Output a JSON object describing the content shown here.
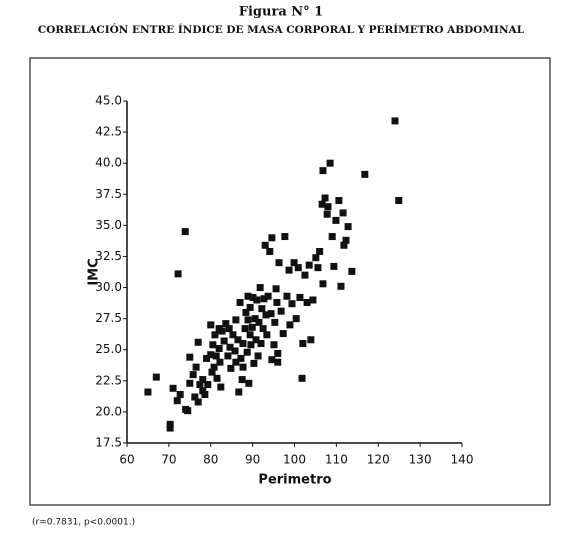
{
  "chart_data": {
    "type": "scatter",
    "title": "Figura N° 1",
    "subtitle": "CORRELACIÓN ENTRE ÍNDICE DE MASA CORPORAL Y PERÍMETRO ABDOMINAL",
    "x_label": "Perimetro",
    "y_label": "IMC",
    "note": "(r=0.7831, p<0.0001.)",
    "color": "#111111",
    "xlim": [
      60,
      140
    ],
    "xticks": [
      60,
      70,
      80,
      90,
      100,
      110,
      120,
      130,
      140
    ],
    "ylim": [
      17.5,
      45
    ],
    "yticks": [
      17.5,
      {
        "value": 20,
        "label": "20.0"
      },
      22.5,
      {
        "value": 25,
        "label": "25.0"
      },
      27.5,
      {
        "value": 30,
        "label": "30.0"
      },
      32.5,
      {
        "value": 35,
        "label": "35.0"
      },
      37.5,
      {
        "value": 40,
        "label": "40.0"
      },
      42.5,
      {
        "value": 45,
        "label": "45.0"
      }
    ],
    "x": [
      65,
      67,
      70.3,
      70.3,
      71,
      72,
      72.2,
      73.9,
      72.7,
      74,
      74.5,
      75,
      75,
      75.8,
      76.2,
      76.5,
      77,
      77,
      77.4,
      78.1,
      78.1,
      78.6,
      79,
      79.3,
      80,
      80,
      80.3,
      80.5,
      80.8,
      81,
      81.3,
      81.5,
      82,
      82,
      82.2,
      82.4,
      82.7,
      83.2,
      83.6,
      84.1,
      84.4,
      84.6,
      84.8,
      85.3,
      85.8,
      86,
      86,
      86.5,
      86.7,
      87,
      87.2,
      87.5,
      87.7,
      87.7,
      88.2,
      88.4,
      88.7,
      88.9,
      88.9,
      89.1,
      89.4,
      89.4,
      89.6,
      89.9,
      90.1,
      90.3,
      90.6,
      90.8,
      91,
      91.3,
      91.5,
      91.8,
      92,
      92.2,
      92.5,
      92.7,
      93,
      93.2,
      93.4,
      93.7,
      94.1,
      94.4,
      94.6,
      94.6,
      95.1,
      95.3,
      95.6,
      95.8,
      96.3,
      96.8,
      97.3,
      97.7,
      98.2,
      98.7,
      98.9,
      99.4,
      99.9,
      100.4,
      100.9,
      101.3,
      101.8,
      102,
      102.5,
      103,
      103.5,
      103.9,
      104.4,
      105.1,
      105.6,
      106,
      106.6,
      106.8,
      106.8,
      107.3,
      107.8,
      108,
      108.5,
      109,
      109.4,
      109.9,
      110.6,
      111.1,
      111.6,
      111.8,
      112.3,
      112.8,
      113.7,
      116.8,
      124,
      124.9,
      96,
      96
    ],
    "y": [
      21.6,
      22.8,
      19,
      18.7,
      21.9,
      20.9,
      31.1,
      34.5,
      21.4,
      20.2,
      20.1,
      22.3,
      24.4,
      23,
      21.2,
      23.6,
      25.6,
      20.8,
      22.2,
      21.7,
      22.6,
      21.4,
      24.3,
      22.2,
      27,
      24.6,
      23.2,
      25.4,
      23.6,
      26.2,
      24.5,
      22.7,
      26.7,
      25.1,
      24,
      22,
      26.5,
      25.7,
      27.1,
      24.5,
      26.7,
      25.2,
      23.5,
      26.2,
      24.9,
      27.4,
      24,
      25.8,
      21.6,
      28.8,
      24.3,
      22.6,
      23.6,
      25.5,
      26.7,
      28,
      24.8,
      27.4,
      29.3,
      22.3,
      26.2,
      28.4,
      25.4,
      26.8,
      29.2,
      23.9,
      27.5,
      25.8,
      29,
      24.5,
      27.2,
      30,
      25.5,
      28.3,
      26.7,
      29.1,
      33.4,
      27.8,
      26.2,
      29.3,
      32.9,
      27.9,
      34,
      24.2,
      25.4,
      27.2,
      29.9,
      28.8,
      32,
      28.1,
      26.3,
      34.1,
      29.3,
      31.4,
      27,
      28.7,
      32,
      27.5,
      31.6,
      29.2,
      22.7,
      25.5,
      31,
      28.8,
      31.8,
      25.8,
      29,
      32.4,
      31.6,
      32.9,
      36.7,
      39.4,
      30.3,
      37.2,
      35.9,
      36.5,
      40,
      34.1,
      31.7,
      35.4,
      37,
      30.1,
      36,
      33.4,
      33.8,
      34.9,
      31.3,
      39.1,
      43.4,
      37,
      24.7,
      24
    ]
  }
}
